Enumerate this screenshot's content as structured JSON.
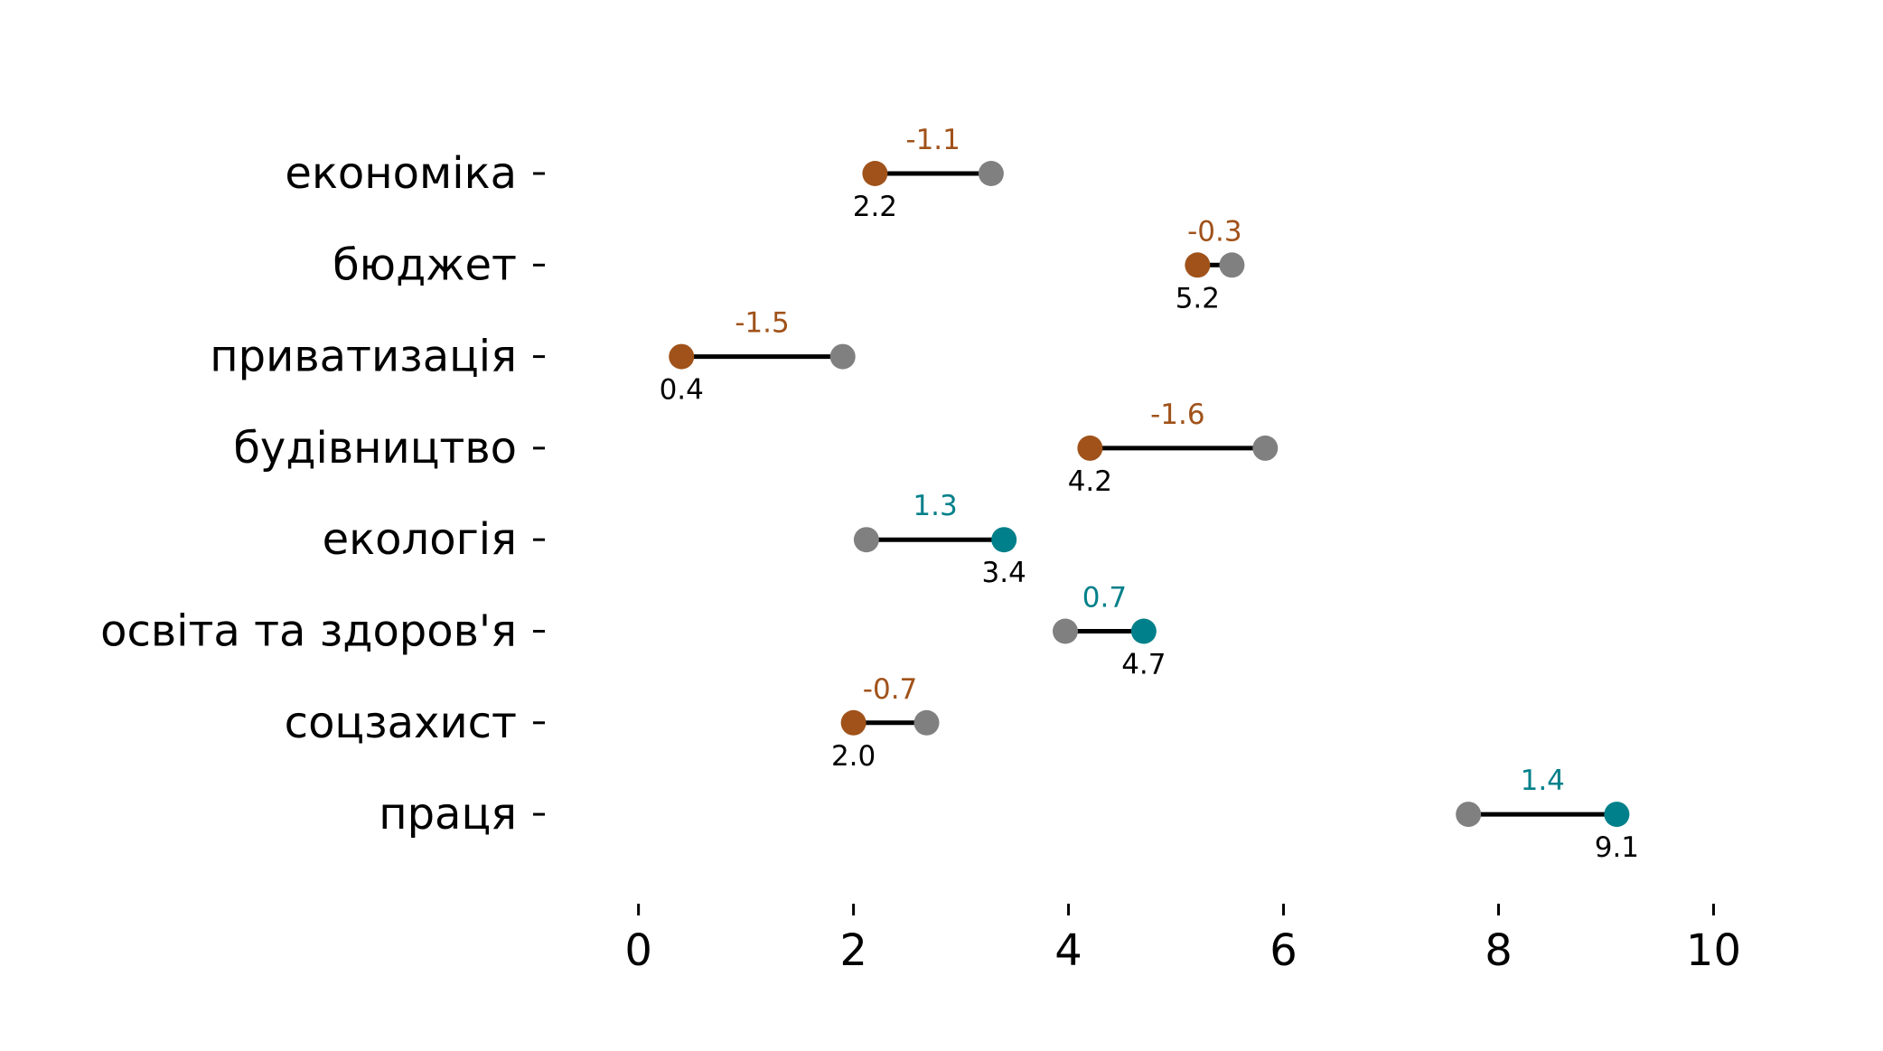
{
  "colors": {
    "decrease": "#A0521A",
    "increase": "#00808A",
    "previous": "#808080",
    "line": "#000000"
  },
  "chart_data": {
    "type": "dumbbell",
    "title": "",
    "xlabel": "",
    "ylabel": "",
    "xlim": [
      -0.35,
      10.45
    ],
    "xticks": [
      0,
      2,
      4,
      6,
      8,
      10
    ],
    "categories": [
      "економіка",
      "бюджет",
      "приватизація",
      "будівництво",
      "екологія",
      "освіта та здоров'я",
      "соцзахист",
      "праця"
    ],
    "start": [
      3.28,
      5.52,
      1.9,
      5.83,
      2.12,
      3.97,
      2.68,
      7.72
    ],
    "end": [
      2.2,
      5.2,
      0.4,
      4.2,
      3.4,
      4.7,
      2.0,
      9.1
    ],
    "end_labels": [
      "2.2",
      "5.2",
      "0.4",
      "4.2",
      "3.4",
      "4.7",
      "2.0",
      "9.1"
    ],
    "diff_labels": [
      "-1.1",
      "-0.3",
      "-1.5",
      "-1.6",
      "1.3",
      "0.7",
      "-0.7",
      "1.4"
    ],
    "grid": false,
    "legend": "none"
  }
}
